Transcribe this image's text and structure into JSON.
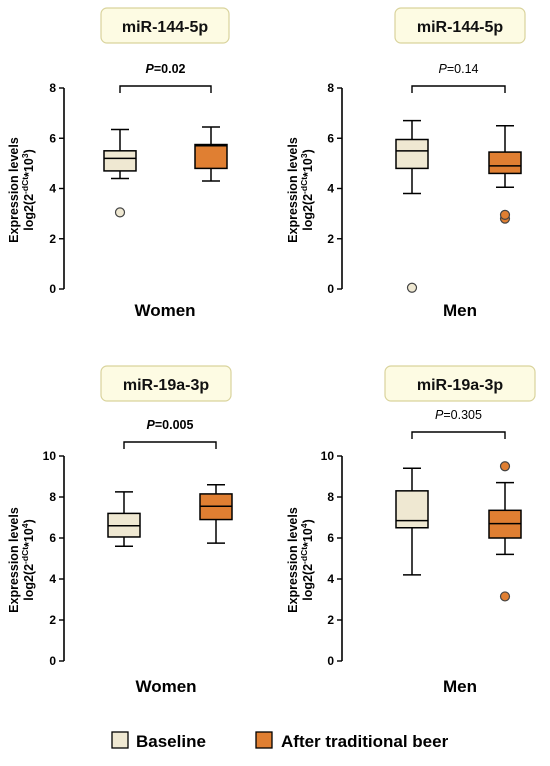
{
  "colors": {
    "baseline": "#efe8d2",
    "after": "#e07f32",
    "title_box_fill": "#fdfbe3",
    "title_box_stroke": "#d9d39c"
  },
  "legend": [
    {
      "label": "Baseline",
      "color": "#efe8d2"
    },
    {
      "label": "After traditional beer",
      "color": "#e07f32"
    }
  ],
  "chart_data": [
    {
      "type": "box",
      "title": "miR-144-5p",
      "xlabel": "Women",
      "ylabel": "Expression levels",
      "ylabel_formula": {
        "pre": "log2(2",
        "sup": "-dCt",
        "mid": "*10",
        "sup2": "3",
        "post": ")"
      },
      "ylim": [
        0,
        8
      ],
      "yticks": [
        0,
        2,
        4,
        6,
        8
      ],
      "p_value": {
        "prefix": "P",
        "text": "=0.02",
        "bold": true
      },
      "series": [
        {
          "name": "Baseline",
          "min": 4.4,
          "q1": 4.7,
          "median": 5.2,
          "q3": 5.5,
          "max": 6.35,
          "outliers": [
            3.05
          ]
        },
        {
          "name": "After traditional beer",
          "min": 4.3,
          "q1": 4.8,
          "median": 5.7,
          "q3": 5.75,
          "max": 6.45,
          "outliers": []
        }
      ]
    },
    {
      "type": "box",
      "title": "miR-144-5p",
      "xlabel": "Men",
      "ylabel": "Expression levels",
      "ylabel_formula": {
        "pre": "log2(2",
        "sup": "-dCt",
        "mid": "*10",
        "sup2": "3",
        "post": ")"
      },
      "ylim": [
        0,
        8
      ],
      "yticks": [
        0,
        2,
        4,
        6,
        8
      ],
      "p_value": {
        "prefix": "P",
        "text": "=0.14",
        "bold": false
      },
      "series": [
        {
          "name": "Baseline",
          "min": 3.8,
          "q1": 4.8,
          "median": 5.5,
          "q3": 5.95,
          "max": 6.7,
          "outliers": [
            0.05
          ]
        },
        {
          "name": "After traditional beer",
          "min": 4.05,
          "q1": 4.6,
          "median": 4.9,
          "q3": 5.45,
          "max": 6.5,
          "outliers": [
            2.8,
            2.95
          ]
        }
      ]
    },
    {
      "type": "box",
      "title": "miR-19a-3p",
      "xlabel": "Women",
      "ylabel": "Expression levels",
      "ylabel_formula": {
        "pre": "log2(2",
        "sup": "-dCt",
        "mid": "*10",
        "sup2": "4",
        "post": ")"
      },
      "ylim": [
        0,
        10
      ],
      "yticks": [
        0,
        2,
        4,
        6,
        8,
        10
      ],
      "p_value": {
        "prefix": "P",
        "text": "=0.005",
        "bold": true
      },
      "series": [
        {
          "name": "Baseline",
          "min": 5.6,
          "q1": 6.05,
          "median": 6.6,
          "q3": 7.2,
          "max": 8.25,
          "outliers": []
        },
        {
          "name": "After traditional beer",
          "min": 5.75,
          "q1": 6.9,
          "median": 7.55,
          "q3": 8.15,
          "max": 8.6,
          "outliers": []
        }
      ]
    },
    {
      "type": "box",
      "title": "miR-19a-3p",
      "xlabel": "Men",
      "ylabel": "Expression levels",
      "ylabel_formula": {
        "pre": "log2(2",
        "sup": "-dCt",
        "mid": "*10",
        "sup2": "4",
        "post": ")"
      },
      "ylim": [
        0,
        10
      ],
      "yticks": [
        0,
        2,
        4,
        6,
        8,
        10
      ],
      "p_value": {
        "prefix": "P",
        "text": "=0.305",
        "bold": false
      },
      "series": [
        {
          "name": "Baseline",
          "min": 4.2,
          "q1": 6.5,
          "median": 6.85,
          "q3": 8.3,
          "max": 9.4,
          "outliers": []
        },
        {
          "name": "After traditional beer",
          "min": 5.2,
          "q1": 6.0,
          "median": 6.7,
          "q3": 7.35,
          "max": 8.7,
          "outliers": [
            3.15,
            9.5
          ]
        }
      ]
    }
  ]
}
